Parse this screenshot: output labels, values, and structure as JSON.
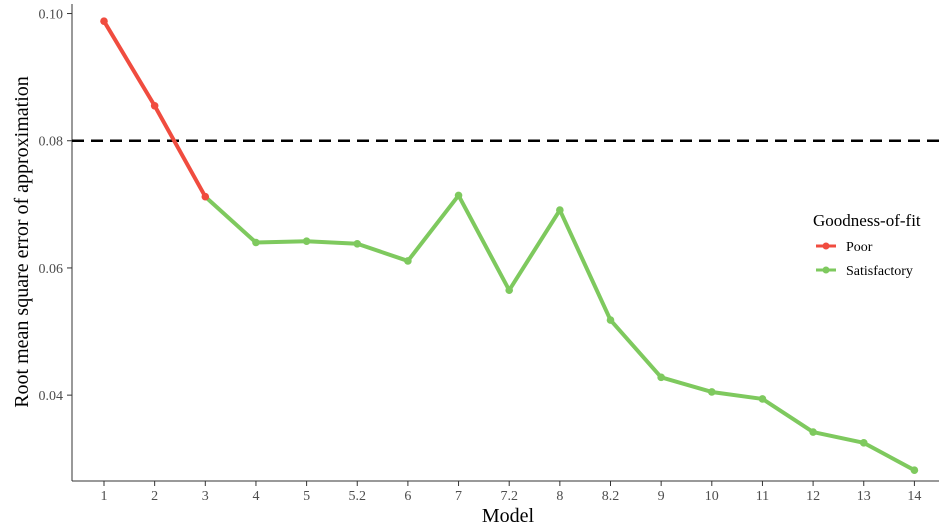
{
  "chart_data": {
    "type": "line",
    "xlabel": "Model",
    "ylabel": "Root mean square error of approximation",
    "categories": [
      "1",
      "2",
      "3",
      "4",
      "5",
      "5.2",
      "6",
      "7",
      "7.2",
      "8",
      "8.2",
      "9",
      "10",
      "11",
      "12",
      "13",
      "14"
    ],
    "values": [
      0.0988,
      0.0855,
      0.0712,
      0.064,
      0.0642,
      0.0638,
      0.0611,
      0.0714,
      0.0565,
      0.0691,
      0.0518,
      0.0428,
      0.0405,
      0.0394,
      0.0342,
      0.0325,
      0.0282
    ],
    "fit": [
      "Poor",
      "Poor",
      "Poor",
      "Satisfactory",
      "Satisfactory",
      "Satisfactory",
      "Satisfactory",
      "Satisfactory",
      "Satisfactory",
      "Satisfactory",
      "Satisfactory",
      "Satisfactory",
      "Satisfactory",
      "Satisfactory",
      "Satisfactory",
      "Satisfactory",
      "Satisfactory"
    ],
    "ylim": [
      0.0265,
      0.1015
    ],
    "yticks": [
      0.04,
      0.06,
      0.08,
      0.1
    ],
    "ytick_labels": [
      "0.04",
      "0.06",
      "0.08",
      "0.10"
    ],
    "reference_line": {
      "y": 0.08,
      "style": "dashed"
    },
    "legend": {
      "title": "Goodness-of-fit",
      "placement": "right",
      "entries": [
        {
          "label": "Poor",
          "color": "#f04c3f"
        },
        {
          "label": "Satisfactory",
          "color": "#7ec95e"
        }
      ]
    },
    "grid": false
  }
}
